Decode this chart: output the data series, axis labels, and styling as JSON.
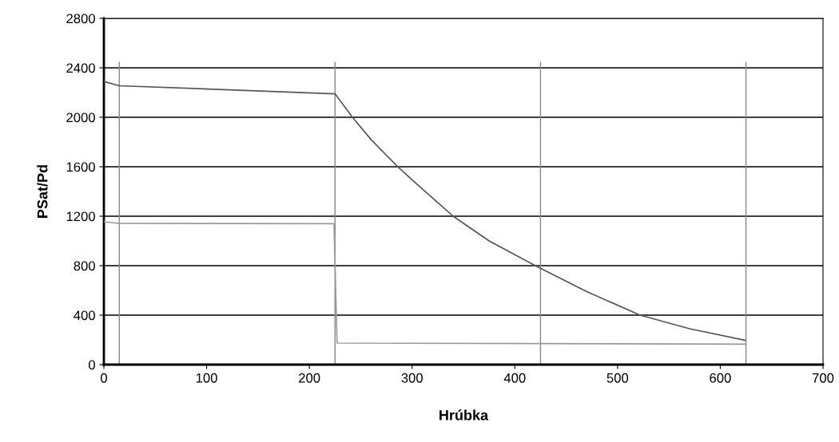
{
  "chart_data": {
    "type": "line",
    "xlabel": "Hrúbka",
    "ylabel": "PSat/Pd",
    "series": [
      {
        "color": "#555555",
        "x": [
          0,
          15,
          225,
          242,
          260,
          286,
          310,
          340,
          375,
          420,
          470,
          522,
          570,
          624
        ],
        "values": [
          2290,
          2255,
          2190,
          2000,
          1820,
          1600,
          1420,
          1200,
          1000,
          800,
          590,
          400,
          290,
          197
        ]
      },
      {
        "color": "#999999",
        "x": [
          0,
          15,
          224,
          227,
          425,
          624
        ],
        "values": [
          1155,
          1142,
          1140,
          174,
          170,
          165
        ]
      }
    ],
    "ref_lines": [
      {
        "axis": "x",
        "value": 15,
        "color": "#888888"
      },
      {
        "axis": "x",
        "value": 225,
        "color": "#888888"
      },
      {
        "axis": "x",
        "value": 425,
        "color": "#888888"
      },
      {
        "axis": "x",
        "value": 625,
        "color": "#888888"
      }
    ],
    "xlim": [
      0,
      700
    ],
    "xticks": [
      0,
      100,
      200,
      300,
      400,
      500,
      600,
      700
    ],
    "ylim": [
      0,
      2800
    ],
    "yticks": [
      0,
      400,
      800,
      1200,
      1600,
      2000,
      2400,
      2800
    ],
    "grid": "y"
  }
}
